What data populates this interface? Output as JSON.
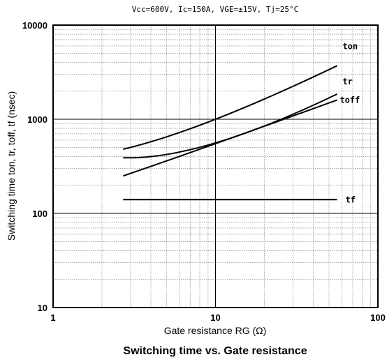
{
  "chart_data": {
    "type": "line",
    "conditions": "Vcc=600V,  Ic=150A,  VGE=±15V,  Tj=25°C",
    "caption": "Switching time vs. Gate resistance",
    "xlabel": "Gate resistance    RG (Ω)",
    "ylabel": "Switching time   ton, tr, toff, tf (nsec)",
    "xscale": "log",
    "yscale": "log",
    "xlim": [
      1,
      100
    ],
    "ylim": [
      10,
      10000
    ],
    "xticks": [
      "1",
      "10",
      "100"
    ],
    "yticks": [
      "10",
      "100",
      "1000",
      "10000"
    ],
    "grid": true,
    "series": [
      {
        "name": "ton",
        "x": [
          2.7,
          10,
          56
        ],
        "y": [
          480,
          1000,
          3700
        ]
      },
      {
        "name": "tr",
        "x": [
          2.7,
          10,
          56
        ],
        "y": [
          390,
          560,
          1850
        ]
      },
      {
        "name": "toff",
        "x": [
          2.7,
          10,
          56
        ],
        "y": [
          250,
          550,
          1600
        ]
      },
      {
        "name": "tf",
        "x": [
          2.7,
          56
        ],
        "y": [
          140,
          140
        ]
      }
    ]
  }
}
